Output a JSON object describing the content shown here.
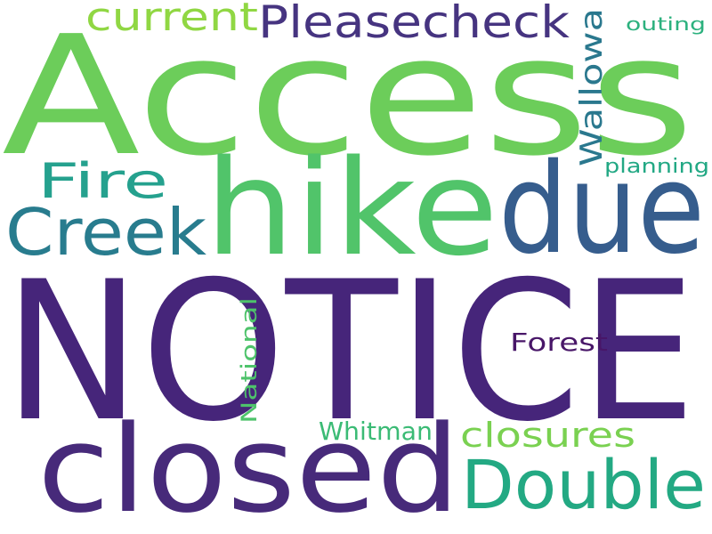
{
  "words": [
    {
      "id": "notice",
      "text": "NOTICE",
      "color": "#46257a"
    },
    {
      "id": "access",
      "text": "Access",
      "color": "#6ccd5a"
    },
    {
      "id": "closed",
      "text": "closed",
      "color": "#472a7a"
    },
    {
      "id": "hike",
      "text": "hike",
      "color": "#51c46a"
    },
    {
      "id": "due",
      "text": "due",
      "color": "#365d8d"
    },
    {
      "id": "double",
      "text": "Double",
      "color": "#23a983"
    },
    {
      "id": "creek",
      "text": "Creek",
      "color": "#287c8e"
    },
    {
      "id": "pleasecheck",
      "text": "Pleasecheck",
      "color": "#463480"
    },
    {
      "id": "current",
      "text": "current",
      "color": "#90d743"
    },
    {
      "id": "fire",
      "text": "Fire",
      "color": "#25a18e"
    },
    {
      "id": "closures",
      "text": "closures",
      "color": "#7ad151"
    },
    {
      "id": "wallowa",
      "text": "Wallowa",
      "color": "#2a788e"
    },
    {
      "id": "forest",
      "text": "Forest",
      "color": "#481668"
    },
    {
      "id": "whitman",
      "text": "Whitman",
      "color": "#3bbb75"
    },
    {
      "id": "national",
      "text": "National",
      "color": "#4ec36b"
    },
    {
      "id": "planning",
      "text": "planning",
      "color": "#22a884"
    },
    {
      "id": "outing",
      "text": "outing",
      "color": "#2cb17e"
    }
  ]
}
